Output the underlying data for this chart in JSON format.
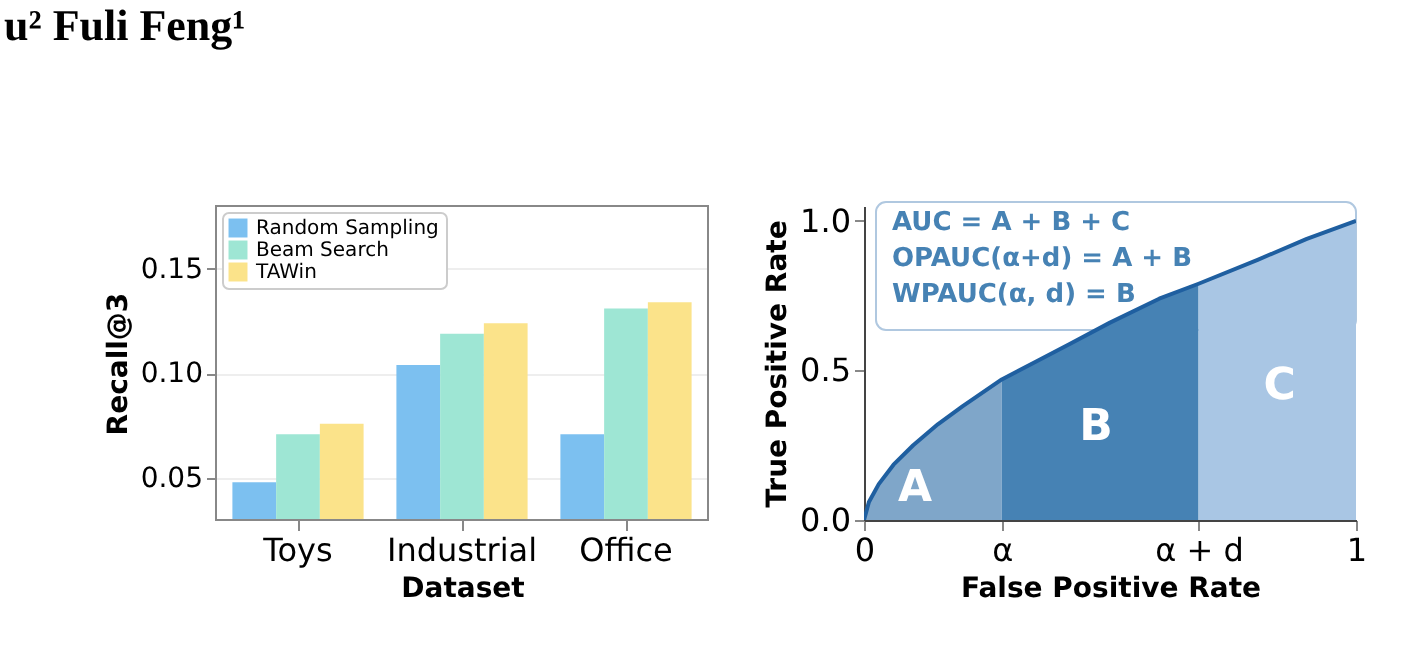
{
  "chart_data": [
    {
      "type": "bar",
      "xlabel": "Dataset",
      "ylabel": "Recall@3",
      "categories": [
        "Toys",
        "Industrial",
        "Office"
      ],
      "ylim": [
        0.03,
        0.18
      ],
      "yticks": [
        0.05,
        {
          "value": 0.1,
          "label": "0.10"
        },
        0.15
      ],
      "grid": "y",
      "legend": "top left",
      "annotations": [
        "u² Fuli Feng¹"
      ],
      "series": [
        {
          "name": "Random Sampling",
          "color": "#7cc0f0",
          "values": [
            0.048,
            0.104,
            0.071
          ]
        },
        {
          "name": "Beam Search",
          "color": "#9ee6d4",
          "values": [
            0.071,
            0.119,
            0.131
          ]
        },
        {
          "name": "TAWin",
          "color": "#fbe38a",
          "values": [
            0.076,
            0.124,
            0.134
          ]
        }
      ]
    },
    {
      "type": "area",
      "xlabel": "False Positive Rate",
      "ylabel": "True Positive Rate",
      "xlim": [
        0,
        1
      ],
      "ylim": [
        0,
        1.05
      ],
      "xticks": [
        0,
        {
          "value": 0.28,
          "label": "α"
        },
        {
          "value": 0.68,
          "label": "α + d"
        },
        1
      ],
      "yticks": [
        {
          "value": 0,
          "label": "0.0"
        },
        {
          "value": 0.5,
          "label": "0.5"
        },
        {
          "value": 1,
          "label": "1.0"
        }
      ],
      "grid": false,
      "annotations": [
        "AUC = A + B + C",
        "OPAUC(α+d) = A + B",
        "WPAUC(α, d) = B"
      ],
      "series": [
        {
          "name": "A",
          "color": "#7fa6c9",
          "x": [
            0,
            0.01,
            0.03,
            0.06,
            0.1,
            0.15,
            0.2,
            0.28
          ],
          "values": [
            0,
            0.06,
            0.12,
            0.185,
            0.25,
            0.32,
            0.38,
            0.47
          ]
        },
        {
          "name": "B",
          "color": "#4682b4",
          "x": [
            0.28,
            0.35,
            0.42,
            0.5,
            0.6,
            0.68
          ],
          "values": [
            0.47,
            0.53,
            0.59,
            0.66,
            0.74,
            0.79
          ]
        },
        {
          "name": "C",
          "color": "#a9c6e4",
          "x": [
            0.68,
            0.8,
            0.9,
            1
          ],
          "values": [
            0.79,
            0.87,
            0.94,
            1.0
          ]
        },
        {
          "type": "line",
          "color": "#1f5fa0",
          "x": [
            0,
            0.01,
            0.03,
            0.06,
            0.1,
            0.15,
            0.2,
            0.28,
            0.35,
            0.42,
            0.5,
            0.6,
            0.68,
            0.8,
            0.9,
            1
          ],
          "values": [
            0,
            0.06,
            0.12,
            0.185,
            0.25,
            0.32,
            0.38,
            0.47,
            0.53,
            0.59,
            0.66,
            0.74,
            0.79,
            0.87,
            0.94,
            1.0
          ]
        }
      ]
    }
  ]
}
